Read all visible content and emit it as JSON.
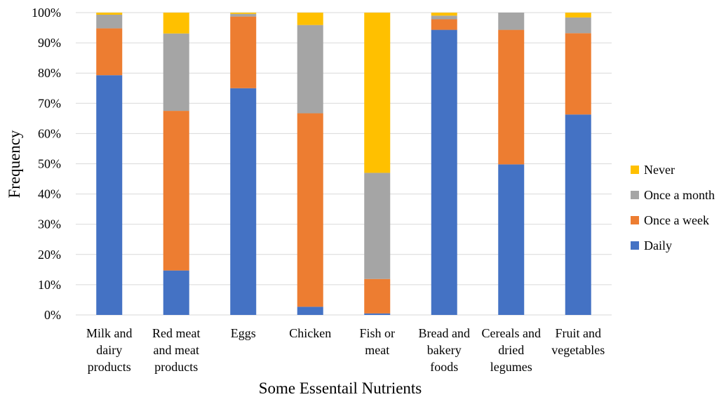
{
  "chart_data": {
    "type": "bar",
    "stacked": true,
    "percent_stacked": true,
    "title": "",
    "xlabel": "Some Essentail Nutrients",
    "ylabel": "Frequency",
    "ylim": [
      0,
      100
    ],
    "yticks": [
      "0%",
      "10%",
      "20%",
      "30%",
      "40%",
      "50%",
      "60%",
      "70%",
      "80%",
      "90%",
      "100%"
    ],
    "grid": true,
    "legend_position": "right",
    "categories": [
      [
        "Milk and",
        "dairy",
        "products"
      ],
      [
        "Red meat",
        "and meat",
        "products"
      ],
      [
        "Eggs"
      ],
      [
        "Chicken"
      ],
      [
        "Fish or",
        "meat"
      ],
      [
        "Bread and",
        "bakery",
        "foods"
      ],
      [
        "Cereals and",
        "dried",
        "legumes"
      ],
      [
        "Fruit and",
        "vegetables"
      ]
    ],
    "series": [
      {
        "name": "Daily",
        "color": "#4472c4",
        "values": [
          79.3,
          14.7,
          75.0,
          2.7,
          0.5,
          94.3,
          49.8,
          66.3
        ]
      },
      {
        "name": "Once a week",
        "color": "#ed7d31",
        "values": [
          15.5,
          52.8,
          23.7,
          64.0,
          11.4,
          3.5,
          44.5,
          26.9
        ]
      },
      {
        "name": "Once a month",
        "color": "#a5a5a5",
        "values": [
          4.5,
          25.6,
          0.9,
          29.2,
          35.1,
          1.2,
          5.7,
          5.2
        ]
      },
      {
        "name": "Never",
        "color": "#ffc000",
        "values": [
          0.7,
          6.9,
          0.4,
          4.1,
          53.0,
          1.0,
          0.0,
          1.6
        ]
      }
    ],
    "legend_order": [
      "Never",
      "Once a month",
      "Once a week",
      "Daily"
    ]
  }
}
